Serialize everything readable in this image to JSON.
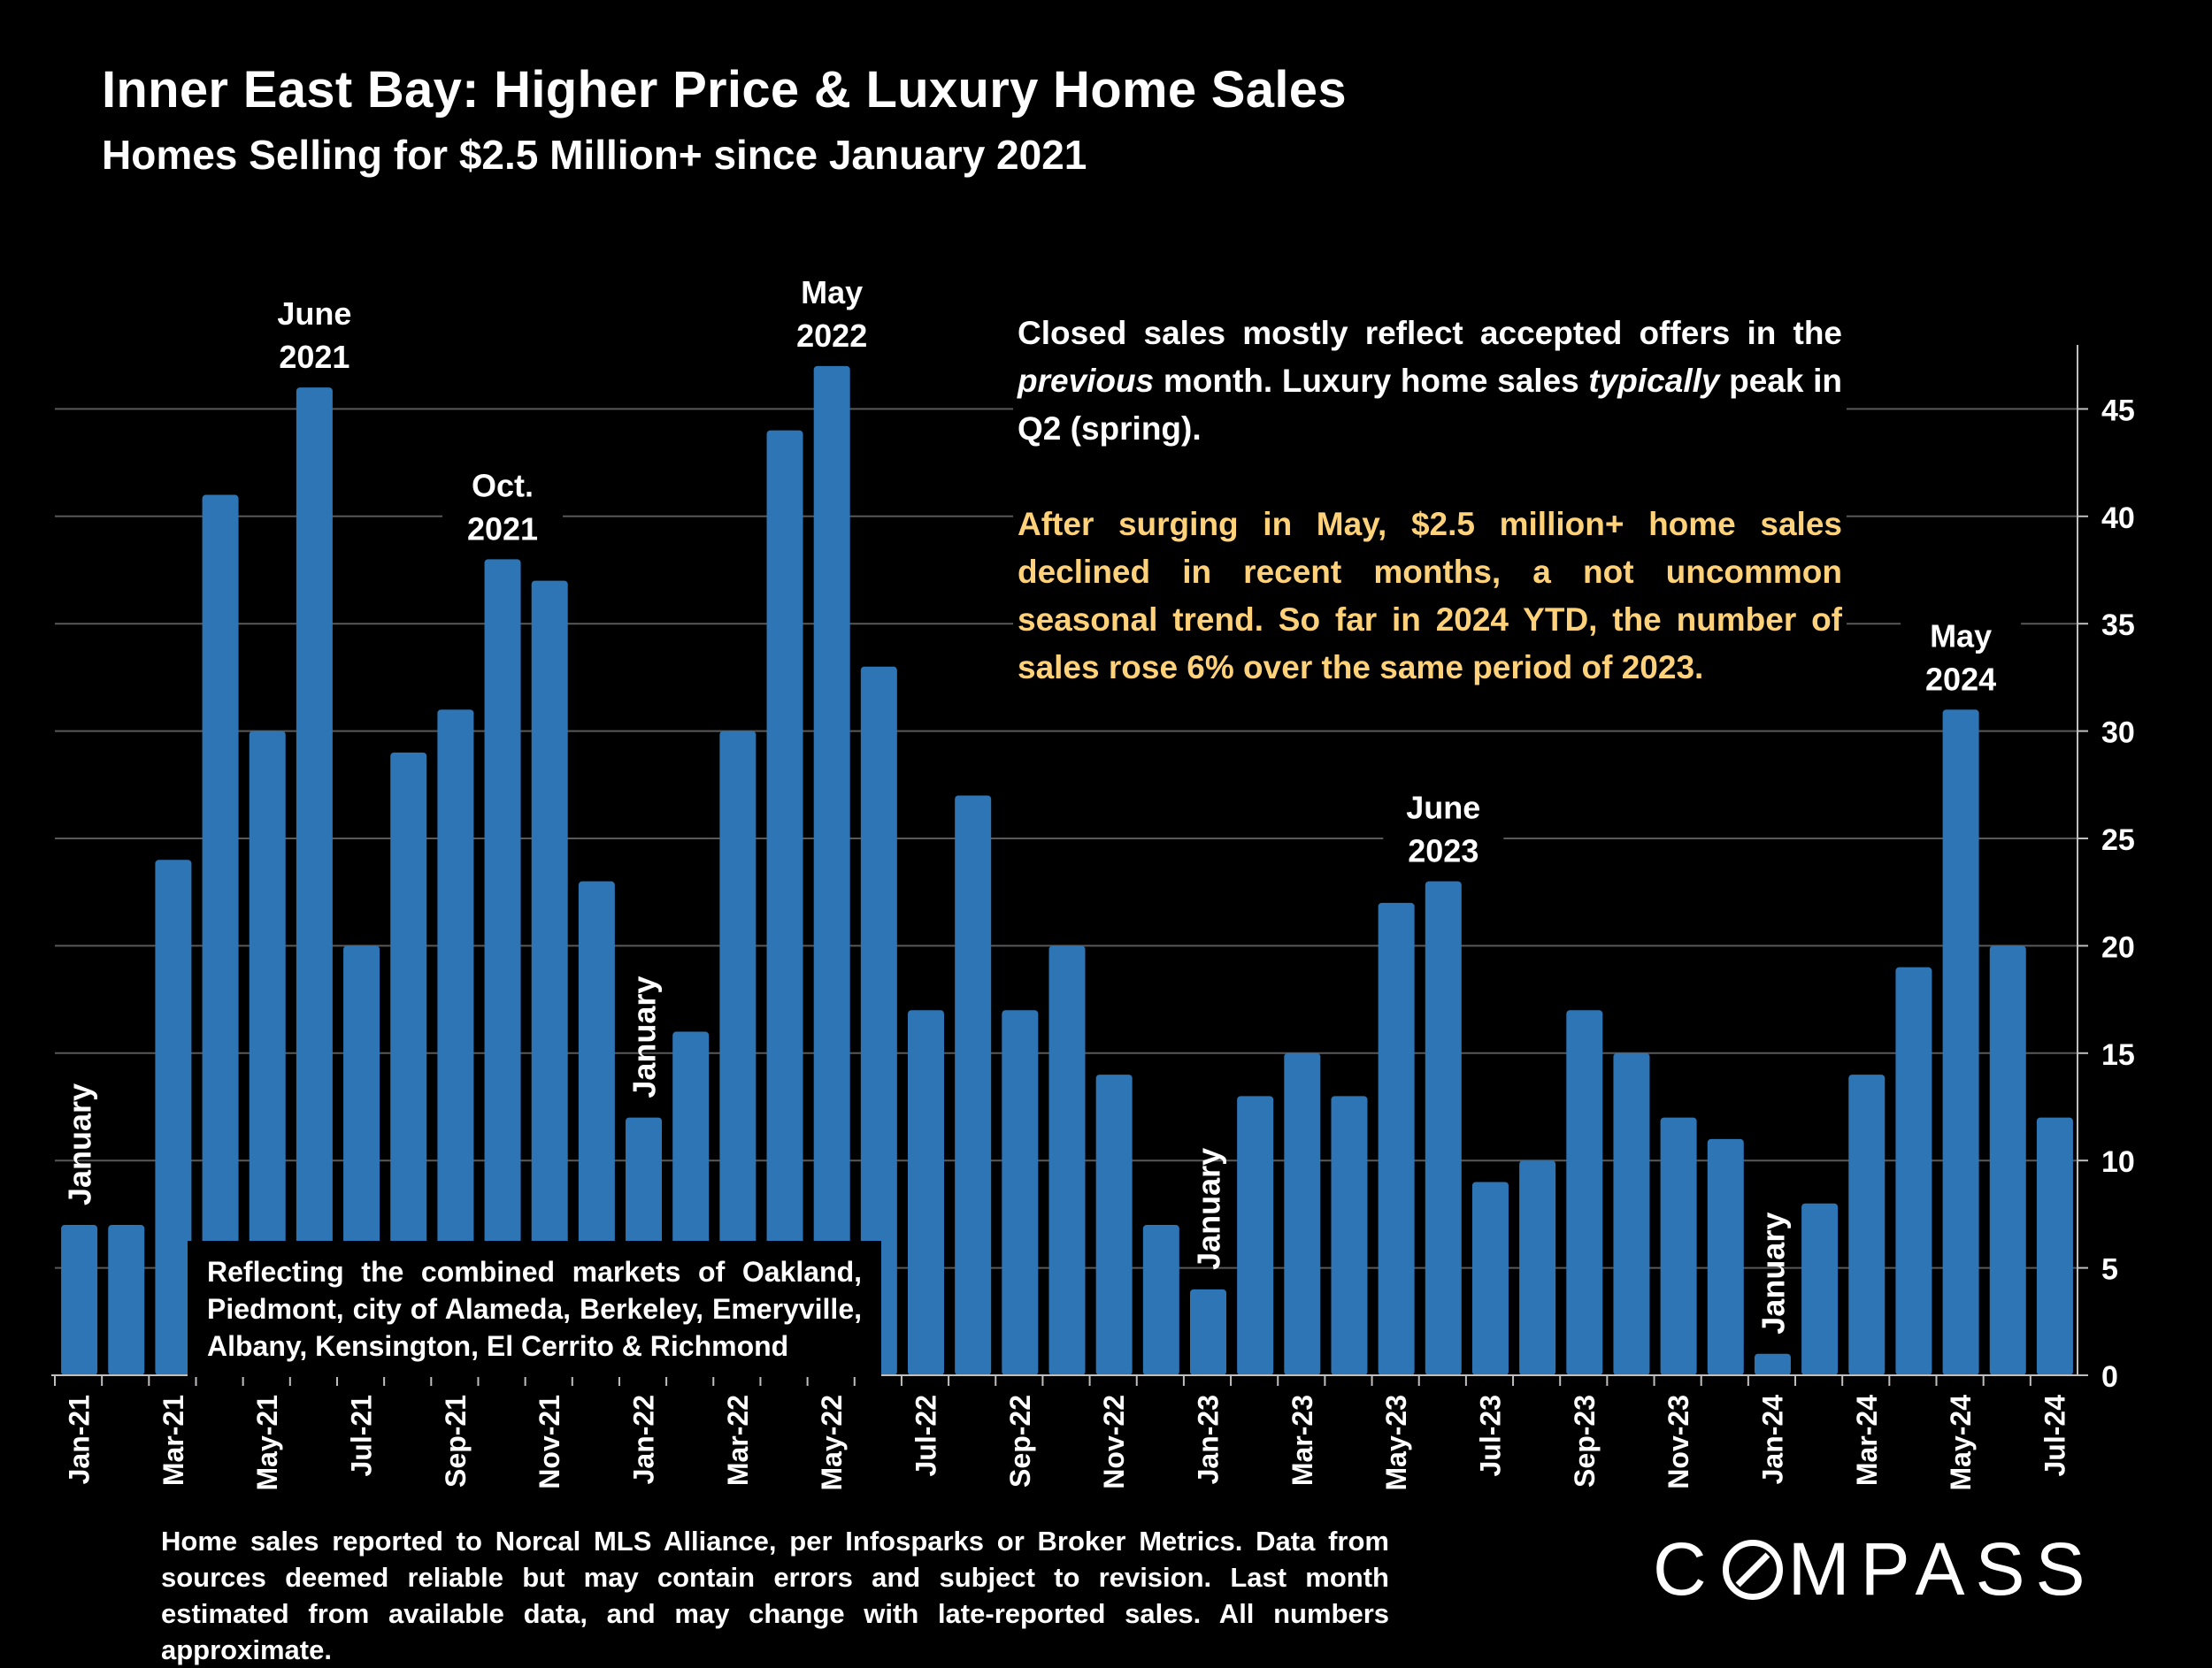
{
  "header": {
    "title": "Inner East Bay: Higher Price & Luxury Home Sales",
    "subtitle": "Homes Selling for $2.5 Million+ since January 2021"
  },
  "notes": {
    "line1_part1": "Closed sales mostly reflect accepted offers in the ",
    "line1_em1": "previous",
    "line1_part2": " month. Luxury home sales ",
    "line1_em2": "typically",
    "line1_part3": " peak in Q2 (spring).",
    "highlight": "After surging in May, $2.5 million+ home sales declined in recent months, a not uncommon seasonal trend. So far in 2024 YTD, the number of sales rose 6% over the same period of 2023.",
    "markets": "Reflecting the combined markets of Oakland, Piedmont, city of Alameda, Berkeley, Emeryville, Albany, Kensington, El Cerrito & Richmond",
    "source": "Home sales reported to Norcal MLS Alliance, per Infosparks or Broker Metrics. Data from sources deemed reliable but may contain errors and subject to revision.  Last month estimated from available data, and may change with late-reported sales. All numbers approximate."
  },
  "logo": {
    "left": "C",
    "right": "MPASS"
  },
  "colors": {
    "bar": "#2e75b6",
    "highlight_text": "#ffd27a",
    "grid": "#595959",
    "background": "#000000"
  },
  "chart_data": {
    "type": "bar",
    "categories": [
      "Jan-21",
      "Feb-21",
      "Mar-21",
      "Apr-21",
      "May-21",
      "Jun-21",
      "Jul-21",
      "Aug-21",
      "Sep-21",
      "Oct-21",
      "Nov-21",
      "Dec-21",
      "Jan-22",
      "Feb-22",
      "Mar-22",
      "Apr-22",
      "May-22",
      "Jun-22",
      "Jul-22",
      "Aug-22",
      "Sep-22",
      "Oct-22",
      "Nov-22",
      "Dec-22",
      "Jan-23",
      "Feb-23",
      "Mar-23",
      "Apr-23",
      "May-23",
      "Jun-23",
      "Jul-23",
      "Aug-23",
      "Sep-23",
      "Oct-23",
      "Nov-23",
      "Dec-23",
      "Jan-24",
      "Feb-24",
      "Mar-24",
      "Apr-24",
      "May-24",
      "Jun-24",
      "Jul-24"
    ],
    "values": [
      7,
      7,
      24,
      41,
      30,
      46,
      20,
      29,
      31,
      38,
      37,
      23,
      12,
      16,
      30,
      44,
      47,
      33,
      17,
      27,
      17,
      20,
      14,
      7,
      4,
      13,
      15,
      13,
      22,
      23,
      9,
      10,
      17,
      15,
      12,
      11,
      1,
      8,
      14,
      19,
      31,
      20,
      12
    ],
    "tick_labels": [
      "Jan-21",
      "Mar-21",
      "May-21",
      "Jul-21",
      "Sep-21",
      "Nov-21",
      "Jan-22",
      "Mar-22",
      "May-22",
      "Jul-22",
      "Sep-22",
      "Nov-22",
      "Jan-23",
      "Mar-23",
      "May-23",
      "Jul-23",
      "Sep-23",
      "Nov-23",
      "Jan-24",
      "Mar-24",
      "May-24",
      "Jul-24"
    ],
    "y_ticks": [
      0,
      5,
      10,
      15,
      20,
      25,
      30,
      35,
      40,
      45
    ],
    "ylim": [
      0,
      48
    ],
    "y_axis_side": "right",
    "grid": true,
    "annotations": [
      {
        "index": 5,
        "lines": [
          "June",
          "2021"
        ]
      },
      {
        "index": 9,
        "lines": [
          "Oct.",
          "2021"
        ]
      },
      {
        "index": 16,
        "lines": [
          "May",
          "2022"
        ]
      },
      {
        "index": 29,
        "lines": [
          "June",
          "2023"
        ]
      },
      {
        "index": 40,
        "lines": [
          "May",
          "2024"
        ]
      }
    ],
    "january_labels": [
      {
        "index": 0,
        "text": "January"
      },
      {
        "index": 12,
        "text": "January"
      },
      {
        "index": 24,
        "text": "January"
      },
      {
        "index": 36,
        "text": "January"
      }
    ]
  }
}
